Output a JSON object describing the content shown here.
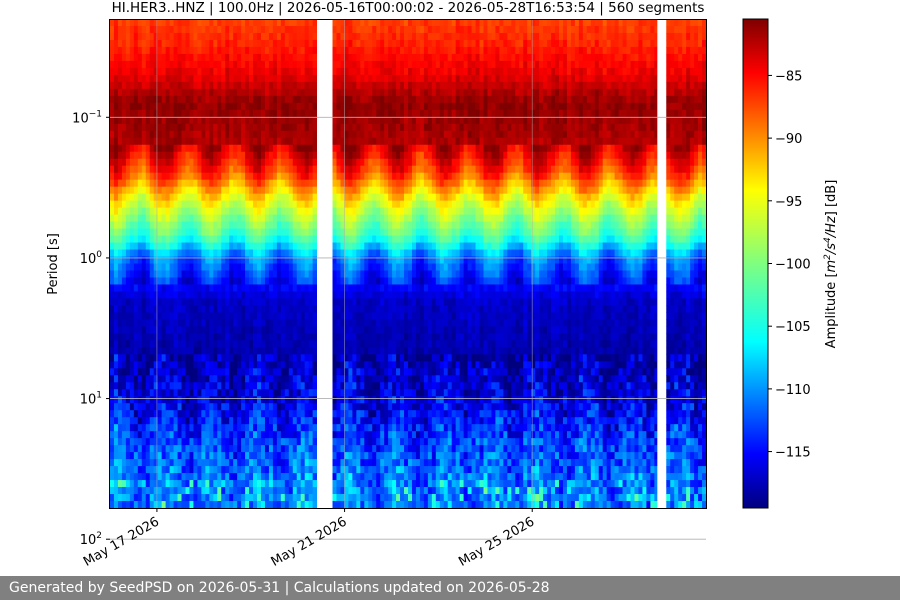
{
  "chart_data": {
    "type": "heatmap",
    "title": "HI.HER3..HNZ | 100.0Hz | 2026-05-16T00:00:02 - 2026-05-28T16:53:54 | 560 segments",
    "ylabel": "Period [s]",
    "colorbar_label_parts": [
      "Amplitude [",
      "m",
      "2",
      "/s",
      "4",
      "/Hz",
      "] [dB]"
    ],
    "y_scale": "log",
    "y_inverted": true,
    "ylim": [
      0.02,
      60
    ],
    "y_ticks": [
      {
        "value": 0.1,
        "base": "10",
        "exp": "−1"
      },
      {
        "value": 1,
        "base": "10",
        "exp": "0"
      },
      {
        "value": 10,
        "base": "10",
        "exp": "1"
      },
      {
        "value": 100,
        "base": "10",
        "exp": "2"
      }
    ],
    "x_ticks": [
      "May 17 2026",
      "May 21 2026",
      "May 25 2026"
    ],
    "x_range_days": [
      "2026-05-16",
      "2026-05-28T16:53:54"
    ],
    "colorbar_range_db": [
      -119.5,
      -80.5
    ],
    "colorbar_ticks": [
      "−85",
      "−90",
      "−95",
      "−100",
      "−105",
      "−110",
      "−115"
    ],
    "colormap": "jet",
    "grid": true,
    "data_gaps": [
      {
        "start": "2026-05-20T10:00",
        "end": "2026-05-20T17:00"
      },
      {
        "start": "2026-05-27T16:00",
        "end": "2026-05-27T20:00"
      }
    ],
    "amplitude_profile_db": [
      {
        "period": 0.02,
        "db": -87
      },
      {
        "period": 0.03,
        "db": -86
      },
      {
        "period": 0.05,
        "db": -84
      },
      {
        "period": 0.08,
        "db": -81
      },
      {
        "period": 0.15,
        "db": -82
      },
      {
        "period": 0.25,
        "db": -87
      },
      {
        "period": 0.4,
        "db": -95
      },
      {
        "period": 0.7,
        "db": -103
      },
      {
        "period": 1.0,
        "db": -111
      },
      {
        "period": 2.0,
        "db": -117
      },
      {
        "period": 5.0,
        "db": -118
      },
      {
        "period": 10.0,
        "db": -116
      },
      {
        "period": 20.0,
        "db": -113
      },
      {
        "period": 40.0,
        "db": -111
      }
    ]
  },
  "footer": {
    "text": "Generated by SeedPSD on 2026-05-31 | Calculations updated on 2026-05-28",
    "background": "#808080"
  }
}
